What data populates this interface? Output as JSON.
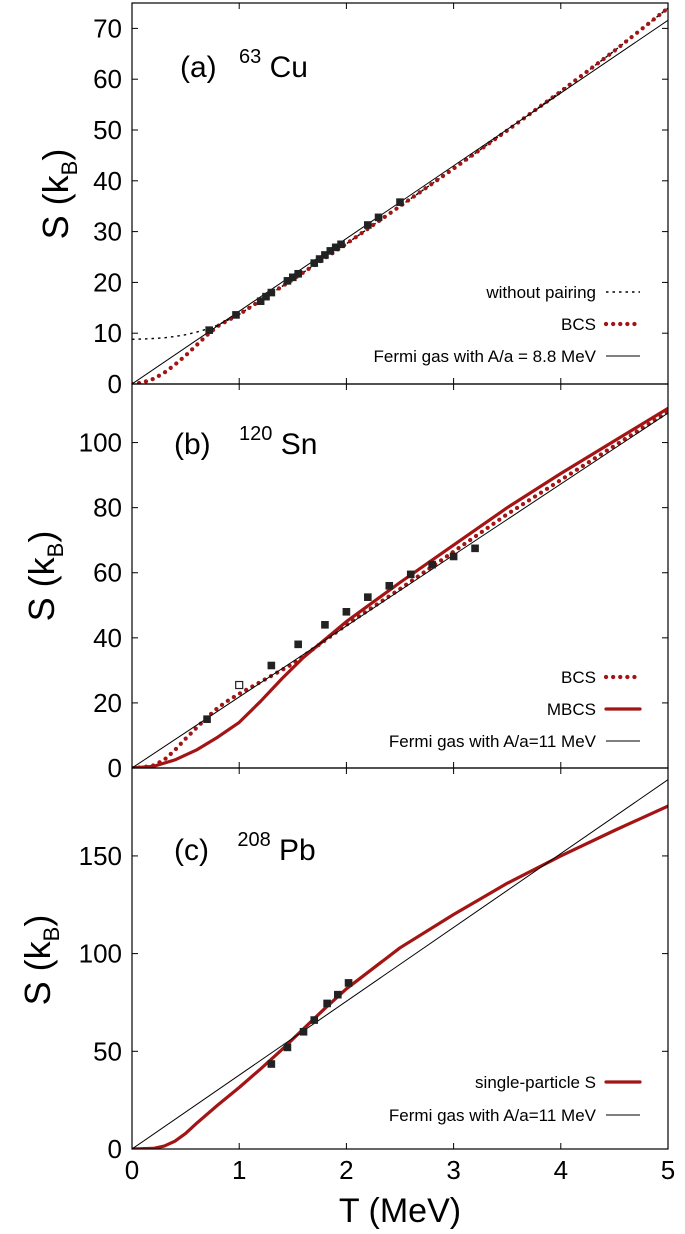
{
  "chart_data": [
    {
      "type": "line",
      "label_prefix": "(a)",
      "nucleus_mass": "63",
      "nucleus_symbol": "Cu",
      "ylabel": "S",
      "ylabel_unit": "k",
      "ylabel_unit_sub": "B",
      "xlim": [
        0,
        5
      ],
      "ylim": [
        0,
        75
      ],
      "yticks": [
        0,
        10,
        20,
        30,
        40,
        50,
        60,
        70
      ],
      "legend_position": "bottom-right",
      "series": [
        {
          "name": "without pairing",
          "style": "dotted-thin",
          "color": "#000000",
          "x": [
            0,
            0.1,
            0.2,
            0.3,
            0.4,
            0.5,
            0.6,
            0.7,
            0.8,
            1.0,
            1.5,
            2.0,
            2.5,
            3.0,
            3.5,
            4.0,
            4.5,
            5.0
          ],
          "y": [
            8.8,
            8.85,
            8.95,
            9.1,
            9.35,
            9.7,
            10.2,
            10.8,
            11.6,
            13.7,
            20.6,
            27.6,
            35.0,
            42.4,
            49.9,
            57.6,
            65.6,
            74.0
          ]
        },
        {
          "name": "BCS",
          "style": "dotted-thick",
          "color": "#a31515",
          "x": [
            0,
            0.1,
            0.2,
            0.3,
            0.4,
            0.5,
            0.6,
            0.7,
            0.8,
            0.9,
            1.0,
            1.5,
            2.0,
            2.5,
            3.0,
            3.5,
            4.0,
            4.5,
            5.0
          ],
          "y": [
            0,
            0.3,
            1.0,
            2.2,
            3.8,
            5.6,
            7.6,
            9.6,
            11.4,
            12.6,
            13.7,
            20.6,
            27.6,
            35.0,
            42.4,
            49.9,
            57.6,
            65.6,
            74.0
          ]
        },
        {
          "name": "Fermi gas with A/a = 8.8 MeV",
          "style": "solid-thin",
          "color": "#000000",
          "x": [
            0,
            5
          ],
          "y": [
            0,
            71.6
          ]
        }
      ],
      "points": [
        {
          "x": 0.72,
          "y": 10.6
        },
        {
          "x": 0.97,
          "y": 13.6
        },
        {
          "x": 1.2,
          "y": 16.3
        },
        {
          "x": 1.25,
          "y": 17.2
        },
        {
          "x": 1.3,
          "y": 18.0
        },
        {
          "x": 1.45,
          "y": 20.3
        },
        {
          "x": 1.5,
          "y": 21.0
        },
        {
          "x": 1.55,
          "y": 21.7
        },
        {
          "x": 1.7,
          "y": 23.8
        },
        {
          "x": 1.75,
          "y": 24.6
        },
        {
          "x": 1.8,
          "y": 25.4
        },
        {
          "x": 1.85,
          "y": 26.2
        },
        {
          "x": 1.9,
          "y": 26.9
        },
        {
          "x": 1.95,
          "y": 27.5
        },
        {
          "x": 2.2,
          "y": 31.3
        },
        {
          "x": 2.3,
          "y": 32.8
        },
        {
          "x": 2.5,
          "y": 35.8
        }
      ]
    },
    {
      "type": "line",
      "label_prefix": "(b)",
      "nucleus_mass": "120",
      "nucleus_symbol": "Sn",
      "ylabel": "S",
      "ylabel_unit": "k",
      "ylabel_unit_sub": "B",
      "xlim": [
        0,
        5
      ],
      "ylim": [
        0,
        118
      ],
      "yticks": [
        0,
        20,
        40,
        60,
        80,
        100
      ],
      "legend_position": "bottom-right",
      "series": [
        {
          "name": "BCS",
          "style": "dotted-thick",
          "color": "#a31515",
          "x": [
            0,
            0.1,
            0.2,
            0.3,
            0.4,
            0.5,
            0.6,
            0.7,
            0.8,
            0.9,
            1.0,
            1.5,
            2.0,
            2.5,
            3.0,
            3.5,
            4.0,
            4.5,
            5.0
          ],
          "y": [
            0,
            0.2,
            0.8,
            2.5,
            5.5,
            9.0,
            12.3,
            15.5,
            18.5,
            20.8,
            22.8,
            32.0,
            44.0,
            55.0,
            66.5,
            78.0,
            88.5,
            99.0,
            109.5
          ]
        },
        {
          "name": "MBCS",
          "style": "solid-thick",
          "color": "#a31515",
          "x": [
            0,
            0.2,
            0.4,
            0.6,
            0.8,
            1.0,
            1.2,
            1.4,
            1.6,
            1.8,
            2.0,
            2.5,
            3.0,
            3.5,
            4.0,
            4.5,
            5.0
          ],
          "y": [
            0,
            0.5,
            2.5,
            5.5,
            9.5,
            14.0,
            20.5,
            27.5,
            34.0,
            39.5,
            45.0,
            57.0,
            68.5,
            80.0,
            90.5,
            100.5,
            110.5
          ]
        },
        {
          "name": "Fermi gas with A/a=11 MeV",
          "style": "solid-thin",
          "color": "#000000",
          "x": [
            0,
            5
          ],
          "y": [
            0,
            109.1
          ]
        }
      ],
      "points": [
        {
          "x": 0.7,
          "y": 15.0
        },
        {
          "x": 1.0,
          "y": 25.5,
          "open": true
        },
        {
          "x": 1.3,
          "y": 31.5
        },
        {
          "x": 1.55,
          "y": 38.0
        },
        {
          "x": 1.8,
          "y": 44.0
        },
        {
          "x": 2.0,
          "y": 48.0
        },
        {
          "x": 2.2,
          "y": 52.5
        },
        {
          "x": 2.4,
          "y": 56.0
        },
        {
          "x": 2.6,
          "y": 59.5
        },
        {
          "x": 2.8,
          "y": 62.5
        },
        {
          "x": 3.0,
          "y": 65.0
        },
        {
          "x": 3.2,
          "y": 67.5
        }
      ]
    },
    {
      "type": "line",
      "label_prefix": "(c)",
      "nucleus_mass": "208",
      "nucleus_symbol": "Pb",
      "ylabel": "S",
      "ylabel_unit": "k",
      "ylabel_unit_sub": "B",
      "xlabel": "T  (MeV)",
      "xlim": [
        0,
        5
      ],
      "xticks": [
        0,
        1,
        2,
        3,
        4,
        5
      ],
      "ylim": [
        0,
        195
      ],
      "yticks": [
        0,
        50,
        100,
        150
      ],
      "legend_position": "bottom-right",
      "series": [
        {
          "name": "single-particle S",
          "style": "solid-thick",
          "color": "#a31515",
          "x": [
            0,
            0.2,
            0.3,
            0.4,
            0.5,
            0.6,
            0.8,
            1.0,
            1.2,
            1.4,
            1.6,
            1.8,
            2.0,
            2.5,
            3.0,
            3.5,
            4.0,
            4.5,
            5.0
          ],
          "y": [
            0,
            0.3,
            1.5,
            4.0,
            8.0,
            13.0,
            22.5,
            31.5,
            41.0,
            51.0,
            61.5,
            72.0,
            82.0,
            103.0,
            120.0,
            136.0,
            150.0,
            163.0,
            175.5
          ]
        },
        {
          "name": "Fermi gas with A/a=11 MeV",
          "style": "solid-thin",
          "color": "#000000",
          "x": [
            0,
            5
          ],
          "y": [
            0,
            189
          ]
        }
      ],
      "points": [
        {
          "x": 1.3,
          "y": 43.5
        },
        {
          "x": 1.45,
          "y": 52.0
        },
        {
          "x": 1.6,
          "y": 60.0
        },
        {
          "x": 1.7,
          "y": 66.0
        },
        {
          "x": 1.82,
          "y": 74.5
        },
        {
          "x": 1.92,
          "y": 79.0
        },
        {
          "x": 2.02,
          "y": 85.0
        }
      ]
    }
  ]
}
